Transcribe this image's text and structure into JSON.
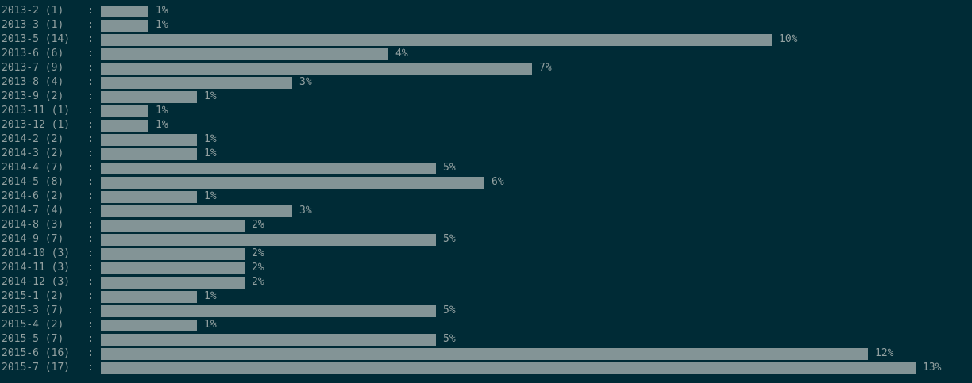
{
  "colors": {
    "background": "#002b36",
    "bar": "#839496",
    "text": "#93a1a1"
  },
  "separator": ":",
  "chart_data": {
    "type": "bar",
    "orientation": "horizontal",
    "categories": [
      "2013-2",
      "2013-3",
      "2013-5",
      "2013-6",
      "2013-7",
      "2013-8",
      "2013-9",
      "2013-11",
      "2013-12",
      "2014-2",
      "2014-3",
      "2014-4",
      "2014-5",
      "2014-6",
      "2014-7",
      "2014-8",
      "2014-9",
      "2014-10",
      "2014-11",
      "2014-12",
      "2015-1",
      "2015-3",
      "2015-4",
      "2015-5",
      "2015-6",
      "2015-7"
    ],
    "counts": [
      1,
      1,
      14,
      6,
      9,
      4,
      2,
      1,
      1,
      2,
      2,
      7,
      8,
      2,
      4,
      3,
      7,
      3,
      3,
      3,
      2,
      7,
      2,
      7,
      16,
      17
    ],
    "row_labels": [
      "2013-2 (1)",
      "2013-3 (1)",
      "2013-5 (14)",
      "2013-6 (6)",
      "2013-7 (9)",
      "2013-8 (4)",
      "2013-9 (2)",
      "2013-11 (1)",
      "2013-12 (1)",
      "2014-2 (2)",
      "2014-3 (2)",
      "2014-4 (7)",
      "2014-5 (8)",
      "2014-6 (2)",
      "2014-7 (4)",
      "2014-8 (3)",
      "2014-9 (7)",
      "2014-10 (3)",
      "2014-11 (3)",
      "2014-12 (3)",
      "2015-1 (2)",
      "2015-3 (7)",
      "2015-4 (2)",
      "2015-5 (7)",
      "2015-6 (16)",
      "2015-7 (17)"
    ],
    "percent_labels": [
      "1%",
      "1%",
      "10%",
      "4%",
      "7%",
      "3%",
      "1%",
      "1%",
      "1%",
      "1%",
      "1%",
      "5%",
      "6%",
      "1%",
      "3%",
      "2%",
      "5%",
      "2%",
      "2%",
      "2%",
      "1%",
      "5%",
      "1%",
      "5%",
      "12%",
      "13%"
    ]
  }
}
